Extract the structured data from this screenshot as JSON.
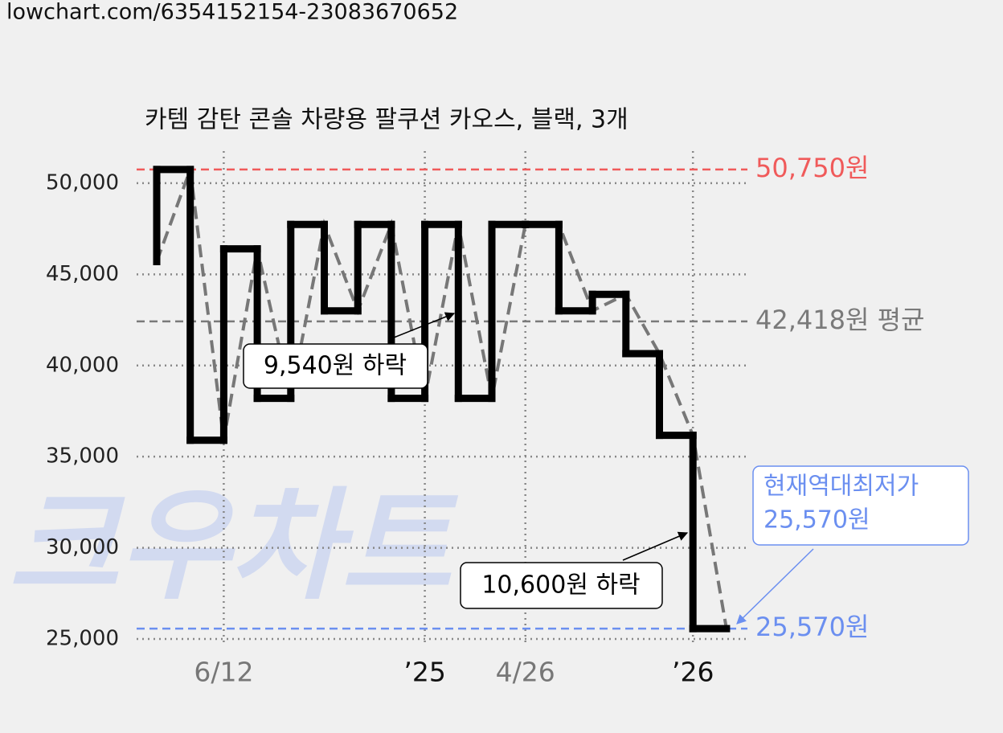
{
  "url": "lowchart.com/6354152154-23083670652",
  "chart_data": {
    "type": "step",
    "title": "카템 감탄 콘솔 차량용 팔쿠션 카오스, 블랙, 3개",
    "watermark": "크우차트",
    "categories": [
      null,
      null,
      "6/12",
      null,
      null,
      null,
      null,
      null,
      "’25",
      null,
      null,
      "4/26",
      null,
      null,
      null,
      null,
      "’26",
      null
    ],
    "series": [
      {
        "color": "#000000",
        "trend_color": "#777777",
        "values": [
          45700,
          50750,
          35900,
          46400,
          38200,
          47740,
          43000,
          47740,
          38200,
          47740,
          38200,
          47740,
          47740,
          43000,
          43900,
          40650,
          36170,
          25570
        ]
      }
    ],
    "ylim": [
      24780,
      51760
    ],
    "yticks": [
      {
        "value": 25000,
        "label": "25,000"
      },
      {
        "value": 30000,
        "label": "30,000"
      },
      {
        "value": 35000,
        "label": "35,000"
      },
      {
        "value": 40000,
        "label": "40,000"
      },
      {
        "value": 45000,
        "label": "45,000"
      },
      {
        "value": 50000,
        "label": "50,000"
      }
    ],
    "grid": true,
    "reference_lines": [
      {
        "value": 50750,
        "label": "50,750원",
        "color": "#f05a5a"
      },
      {
        "value": 42418,
        "label": "42,418원 평균",
        "color": "#7a7a7a"
      },
      {
        "value": 25570,
        "label": "25,570원",
        "color": "#6b8ff0"
      }
    ],
    "annotations": [
      {
        "text": "9,540원 하락"
      },
      {
        "text": "10,600원 하락"
      },
      {
        "lines": [
          "현재역대최저가",
          "25,570원"
        ]
      }
    ]
  }
}
